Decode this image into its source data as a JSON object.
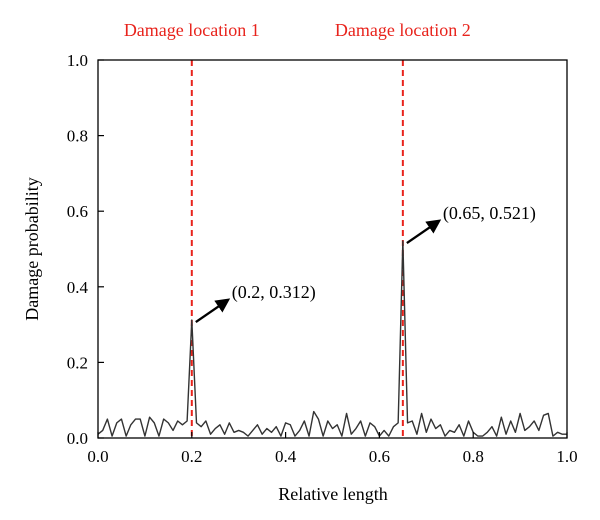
{
  "chart_data": {
    "type": "line",
    "title": "",
    "xlabel": "Relative length",
    "ylabel": "Damage probability",
    "xlim": [
      0.0,
      1.0
    ],
    "ylim": [
      0.0,
      1.0
    ],
    "x_ticks": [
      0.0,
      0.2,
      0.4,
      0.6,
      0.8,
      1.0
    ],
    "y_ticks": [
      0.0,
      0.2,
      0.4,
      0.6,
      0.8,
      1.0
    ],
    "x_tick_labels": [
      "0.0",
      "0.2",
      "0.4",
      "0.6",
      "0.8",
      "1.0"
    ],
    "y_tick_labels": [
      "0.0",
      "0.2",
      "0.4",
      "0.6",
      "0.8",
      "1.0"
    ],
    "grid": false,
    "legend": "none",
    "series": [
      {
        "color": "#333333",
        "x": [
          0.0,
          0.01,
          0.02,
          0.03,
          0.04,
          0.05,
          0.06,
          0.07,
          0.08,
          0.09,
          0.1,
          0.11,
          0.12,
          0.13,
          0.14,
          0.15,
          0.16,
          0.17,
          0.18,
          0.19,
          0.2,
          0.21,
          0.22,
          0.23,
          0.24,
          0.25,
          0.26,
          0.27,
          0.28,
          0.29,
          0.3,
          0.31,
          0.32,
          0.33,
          0.34,
          0.35,
          0.36,
          0.37,
          0.38,
          0.39,
          0.4,
          0.41,
          0.42,
          0.43,
          0.44,
          0.45,
          0.46,
          0.47,
          0.48,
          0.49,
          0.5,
          0.51,
          0.52,
          0.53,
          0.54,
          0.55,
          0.56,
          0.57,
          0.58,
          0.59,
          0.6,
          0.61,
          0.62,
          0.63,
          0.64,
          0.65,
          0.66,
          0.67,
          0.68,
          0.69,
          0.7,
          0.71,
          0.72,
          0.73,
          0.74,
          0.75,
          0.76,
          0.77,
          0.78,
          0.79,
          0.8,
          0.81,
          0.82,
          0.83,
          0.84,
          0.85,
          0.86,
          0.87,
          0.88,
          0.89,
          0.9,
          0.91,
          0.92,
          0.93,
          0.94,
          0.95,
          0.96,
          0.97,
          0.98,
          0.99,
          1.0
        ],
        "y": [
          0.01,
          0.02,
          0.05,
          0.005,
          0.04,
          0.05,
          0.005,
          0.035,
          0.05,
          0.05,
          0.005,
          0.055,
          0.04,
          0.005,
          0.05,
          0.04,
          0.02,
          0.045,
          0.035,
          0.045,
          0.312,
          0.04,
          0.03,
          0.045,
          0.01,
          0.025,
          0.035,
          0.01,
          0.04,
          0.015,
          0.02,
          0.015,
          0.005,
          0.02,
          0.035,
          0.01,
          0.025,
          0.015,
          0.03,
          0.005,
          0.04,
          0.035,
          0.005,
          0.02,
          0.045,
          0.005,
          0.07,
          0.05,
          0.005,
          0.045,
          0.025,
          0.035,
          0.005,
          0.065,
          0.01,
          0.025,
          0.045,
          0.005,
          0.04,
          0.03,
          0.005,
          0.02,
          0.005,
          0.03,
          0.04,
          0.521,
          0.04,
          0.045,
          0.01,
          0.065,
          0.015,
          0.05,
          0.025,
          0.035,
          0.005,
          0.02,
          0.015,
          0.035,
          0.005,
          0.045,
          0.015,
          0.005,
          0.005,
          0.015,
          0.03,
          0.005,
          0.055,
          0.01,
          0.045,
          0.015,
          0.065,
          0.02,
          0.03,
          0.045,
          0.02,
          0.06,
          0.065,
          0.005,
          0.015,
          0.01,
          0.01
        ]
      }
    ],
    "damage_locations": [
      {
        "label": "Damage location 1",
        "x": 0.2,
        "color": "#e8231c"
      },
      {
        "label": "Damage location 2",
        "x": 0.65,
        "color": "#e8231c"
      }
    ],
    "annotations": [
      {
        "text": "(0.2, 0.312)",
        "x": 0.2,
        "y": 0.312
      },
      {
        "text": "(0.65, 0.521)",
        "x": 0.65,
        "y": 0.521
      }
    ]
  }
}
